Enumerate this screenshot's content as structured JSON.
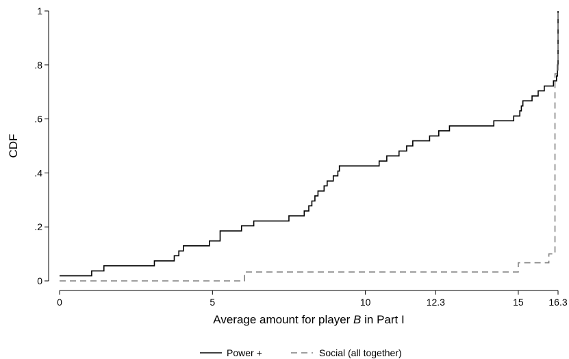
{
  "chart_data": {
    "type": "line",
    "step": true,
    "xlabel_prefix": "Average amount for player ",
    "xlabel_italic": "B",
    "xlabel_suffix": " in Part I",
    "ylabel": "CDF",
    "xlim": [
      0,
      16.3
    ],
    "ylim": [
      0,
      1
    ],
    "xticks": [
      0,
      5,
      10,
      12.3,
      15,
      16.3
    ],
    "xtick_labels": [
      "0",
      "5",
      "10",
      "12.3",
      "15",
      "16.3"
    ],
    "yticks": [
      0,
      0.2,
      0.4,
      0.6,
      0.8,
      1
    ],
    "ytick_labels": [
      "0",
      ".2",
      ".4",
      ".6",
      ".8",
      "1"
    ],
    "grid": false,
    "legend_position": "bottom",
    "series": [
      {
        "name": "Power +",
        "color": "#000000",
        "dash": "solid",
        "points": [
          [
            0,
            0.019
          ],
          [
            1.05,
            0.037
          ],
          [
            1.45,
            0.056
          ],
          [
            3.1,
            0.074
          ],
          [
            3.75,
            0.093
          ],
          [
            3.9,
            0.111
          ],
          [
            4.05,
            0.13
          ],
          [
            4.9,
            0.148
          ],
          [
            5.25,
            0.185
          ],
          [
            5.95,
            0.204
          ],
          [
            6.35,
            0.222
          ],
          [
            7.5,
            0.241
          ],
          [
            8.0,
            0.259
          ],
          [
            8.15,
            0.278
          ],
          [
            8.25,
            0.296
          ],
          [
            8.35,
            0.315
          ],
          [
            8.45,
            0.333
          ],
          [
            8.65,
            0.352
          ],
          [
            8.75,
            0.37
          ],
          [
            8.95,
            0.389
          ],
          [
            9.1,
            0.407
          ],
          [
            9.15,
            0.426
          ],
          [
            10.45,
            0.444
          ],
          [
            10.7,
            0.463
          ],
          [
            11.1,
            0.481
          ],
          [
            11.35,
            0.5
          ],
          [
            11.55,
            0.519
          ],
          [
            12.1,
            0.537
          ],
          [
            12.4,
            0.556
          ],
          [
            12.75,
            0.574
          ],
          [
            14.2,
            0.593
          ],
          [
            14.85,
            0.611
          ],
          [
            15.05,
            0.63
          ],
          [
            15.1,
            0.648
          ],
          [
            15.15,
            0.667
          ],
          [
            15.45,
            0.685
          ],
          [
            15.65,
            0.704
          ],
          [
            15.85,
            0.722
          ],
          [
            16.15,
            0.741
          ],
          [
            16.25,
            0.759
          ],
          [
            16.28,
            0.8
          ],
          [
            16.3,
            1.0
          ]
        ]
      },
      {
        "name": "Social (all together)",
        "color": "#7f7f7f",
        "dash": "dashed",
        "points": [
          [
            0,
            0.0
          ],
          [
            6.05,
            0.033
          ],
          [
            15.0,
            0.067
          ],
          [
            16.0,
            0.1
          ],
          [
            16.2,
            0.767
          ],
          [
            16.3,
            1.0
          ]
        ]
      }
    ]
  }
}
